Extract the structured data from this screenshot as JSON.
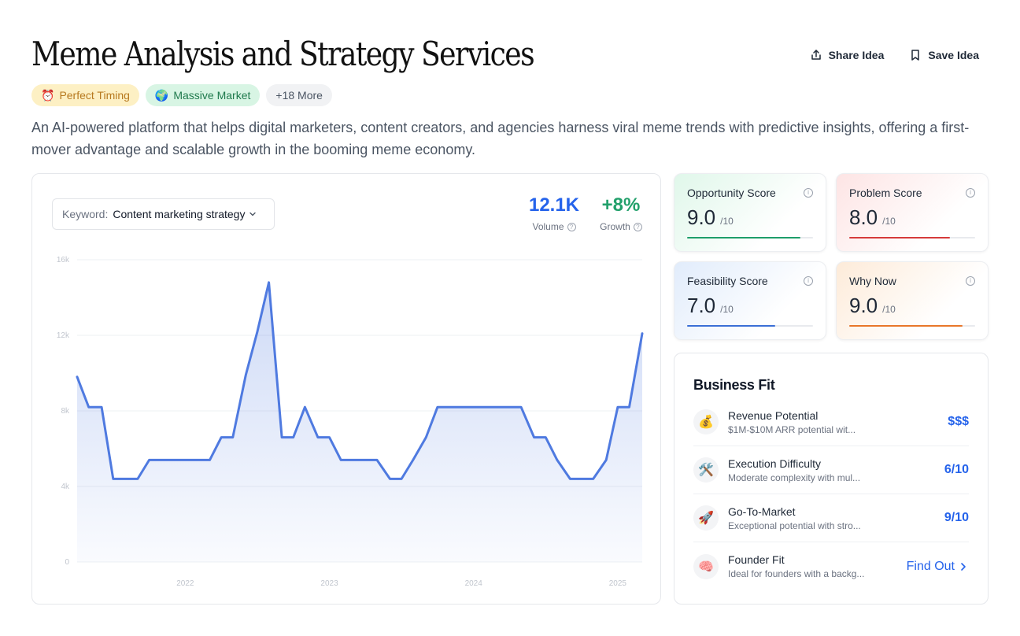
{
  "header": {
    "title": "Meme Analysis and Strategy Services",
    "share_label": "Share Idea",
    "save_label": "Save Idea"
  },
  "tags": [
    {
      "emoji": "⏰",
      "label": "Perfect Timing"
    },
    {
      "emoji": "🌍",
      "label": "Massive Market"
    },
    {
      "label": "+18 More"
    }
  ],
  "description": "An AI-powered platform that helps digital marketers, content creators, and agencies harness viral meme trends with predictive insights, offering a first-mover advantage and scalable growth in the booming meme economy.",
  "trend": {
    "keyword_label": "Keyword:",
    "keyword_value": "Content marketing strategy",
    "volume_value": "12.1K",
    "volume_label": "Volume",
    "growth_value": "+8%",
    "growth_label": "Growth"
  },
  "chart_data": {
    "type": "area",
    "y_ticks": [
      "0",
      "4k",
      "8k",
      "12k",
      "16k"
    ],
    "ylim": [
      0,
      16000
    ],
    "x_ticks": [
      {
        "label": "2022",
        "x": 2022
      },
      {
        "label": "2023",
        "x": 2023
      },
      {
        "label": "2024",
        "x": 2024
      },
      {
        "label": "2025",
        "x": 2025
      }
    ],
    "xlim": [
      2021.25,
      2025.17
    ],
    "x": [
      2021.25,
      2021.33,
      2021.42,
      2021.5,
      2021.58,
      2021.67,
      2021.75,
      2021.83,
      2021.92,
      2022.0,
      2022.08,
      2022.17,
      2022.25,
      2022.33,
      2022.42,
      2022.5,
      2022.58,
      2022.67,
      2022.75,
      2022.83,
      2022.92,
      2023.0,
      2023.08,
      2023.17,
      2023.25,
      2023.33,
      2023.42,
      2023.5,
      2023.58,
      2023.67,
      2023.75,
      2023.83,
      2023.92,
      2024.0,
      2024.08,
      2024.17,
      2024.25,
      2024.33,
      2024.42,
      2024.5,
      2024.58,
      2024.67,
      2024.75,
      2024.83,
      2024.92,
      2025.0,
      2025.08,
      2025.17
    ],
    "values": [
      9800,
      8200,
      8200,
      4400,
      4400,
      4400,
      5400,
      5400,
      5400,
      5400,
      5400,
      5400,
      6600,
      6600,
      9900,
      12200,
      14800,
      6600,
      6600,
      8200,
      6600,
      6600,
      5400,
      5400,
      5400,
      5400,
      4400,
      4400,
      5400,
      6600,
      8200,
      8200,
      8200,
      8200,
      8200,
      8200,
      8200,
      8200,
      6600,
      6600,
      5400,
      4400,
      4400,
      4400,
      5400,
      8200,
      8200,
      12100
    ],
    "color": "#4f7ae0"
  },
  "scores": [
    {
      "label": "Opportunity Score",
      "value": "9.0",
      "denom": "/10",
      "fraction": 0.9,
      "color": "#1e9e6a"
    },
    {
      "label": "Problem Score",
      "value": "8.0",
      "denom": "/10",
      "fraction": 0.8,
      "color": "#d63a3a"
    },
    {
      "label": "Feasibility Score",
      "value": "7.0",
      "denom": "/10",
      "fraction": 0.7,
      "color": "#3b6fd6"
    },
    {
      "label": "Why Now",
      "value": "9.0",
      "denom": "/10",
      "fraction": 0.9,
      "color": "#e8772a"
    }
  ],
  "business_fit": {
    "title": "Business Fit",
    "rows": [
      {
        "emoji": "💰",
        "title": "Revenue Potential",
        "desc": "$1M-$10M ARR potential wit...",
        "value": "$$$"
      },
      {
        "emoji": "🛠️",
        "title": "Execution Difficulty",
        "desc": "Moderate complexity with mul...",
        "value": "6/10"
      },
      {
        "emoji": "🚀",
        "title": "Go-To-Market",
        "desc": "Exceptional potential with stro...",
        "value": "9/10"
      },
      {
        "emoji": "🧠",
        "title": "Founder Fit",
        "desc": "Ideal for founders with a backg...",
        "value": "Find Out"
      }
    ]
  }
}
